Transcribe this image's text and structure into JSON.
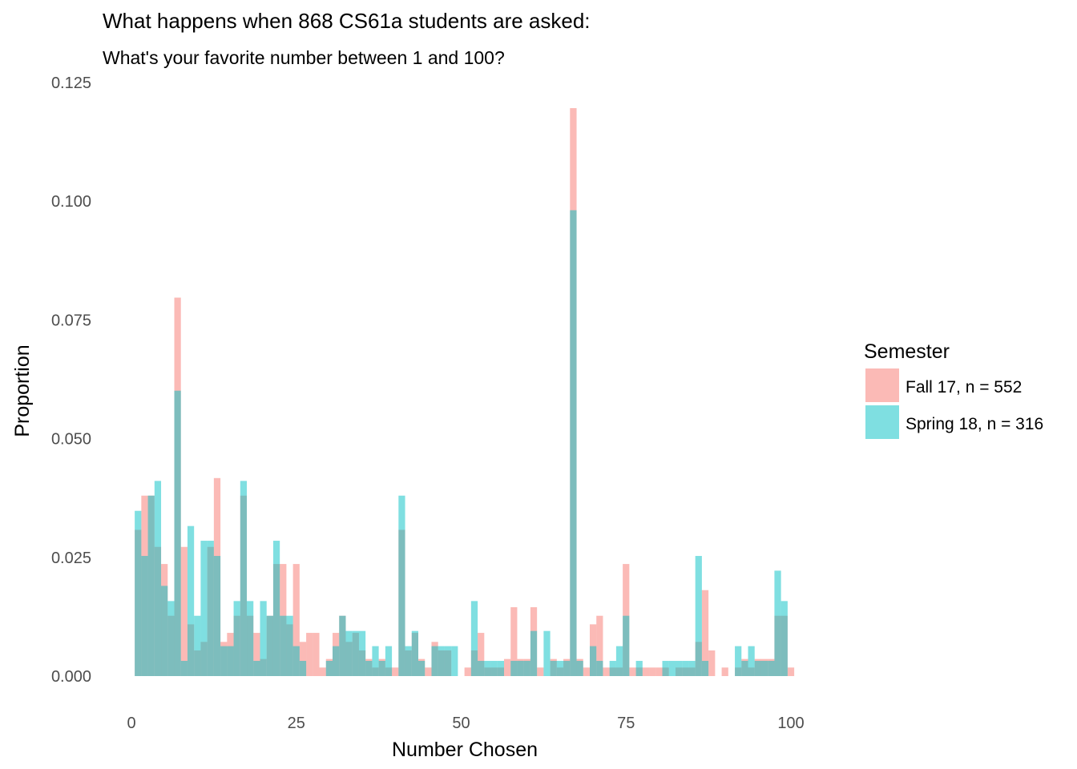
{
  "chart_data": {
    "type": "bar",
    "title": "What happens when 868 CS61a students are asked:",
    "subtitle": "What's your favorite number between 1 and 100?",
    "xlabel": "Number Chosen",
    "ylabel": "Proportion",
    "xlim": [
      0,
      100
    ],
    "ylim": [
      0,
      0.125
    ],
    "x_ticks": [
      "0",
      "25",
      "50",
      "75",
      "100"
    ],
    "x_tick_values": [
      0,
      25,
      50,
      75,
      100
    ],
    "y_ticks": [
      "0.000",
      "0.025",
      "0.050",
      "0.075",
      "0.100",
      "0.125"
    ],
    "y_tick_values": [
      0,
      0.025,
      0.05,
      0.075,
      0.1,
      0.125
    ],
    "grid": false,
    "legend": {
      "title": "Semester",
      "placement": "right"
    },
    "x": [
      1,
      2,
      3,
      4,
      5,
      6,
      7,
      8,
      9,
      10,
      11,
      12,
      13,
      14,
      15,
      16,
      17,
      18,
      19,
      20,
      21,
      22,
      23,
      24,
      25,
      26,
      27,
      28,
      29,
      30,
      31,
      32,
      33,
      34,
      35,
      36,
      37,
      38,
      39,
      40,
      41,
      42,
      43,
      44,
      45,
      46,
      47,
      48,
      49,
      50,
      51,
      52,
      53,
      54,
      55,
      56,
      57,
      58,
      59,
      60,
      61,
      62,
      63,
      64,
      65,
      66,
      67,
      68,
      69,
      70,
      71,
      72,
      73,
      74,
      75,
      76,
      77,
      78,
      79,
      80,
      81,
      82,
      83,
      84,
      85,
      86,
      87,
      88,
      89,
      90,
      91,
      92,
      93,
      94,
      95,
      96,
      97,
      98,
      99,
      100
    ],
    "series": [
      {
        "name": "Fall 17, n = 552",
        "color": "#F8766D",
        "values": [
          0.0308,
          0.038,
          0.038,
          0.0272,
          0.0236,
          0.0127,
          0.0797,
          0.0272,
          0.0109,
          0.0054,
          0.0072,
          0.0272,
          0.0417,
          0.0072,
          0.0091,
          0.0127,
          0.038,
          0.0127,
          0.0091,
          0.0036,
          0.0127,
          0.0236,
          0.0236,
          0.0109,
          0.0236,
          0.0072,
          0.0091,
          0.0091,
          0.0018,
          0.0036,
          0.0091,
          0.0127,
          0.0072,
          0.0091,
          0.0054,
          0.0036,
          0.0018,
          0.0036,
          0.0018,
          0.0018,
          0.0308,
          0.0054,
          0.0091,
          0.0036,
          0.0018,
          0.0072,
          0.0054,
          0.0054,
          0,
          0,
          0.0018,
          0.0054,
          0.0091,
          0.0018,
          0.0018,
          0.0018,
          0.0036,
          0.0145,
          0.0036,
          0.0036,
          0.0145,
          0.0018,
          0,
          0.0036,
          0.0018,
          0.0036,
          0.1196,
          0.0036,
          0.0018,
          0.0109,
          0.0127,
          0.0018,
          0.0018,
          0.0018,
          0.0236,
          0.0018,
          0.0018,
          0.0018,
          0.0018,
          0.0018,
          0.0018,
          0,
          0.0018,
          0.0018,
          0.0018,
          0.0072,
          0.0181,
          0.0054,
          0,
          0.0018,
          0,
          0.0018,
          0.0036,
          0.0018,
          0.0036,
          0.0036,
          0.0036,
          0.0127,
          0.0127,
          0.0018
        ]
      },
      {
        "name": "Spring 18, n = 316",
        "color": "#00BFC4",
        "values": [
          0.0348,
          0.0253,
          0.038,
          0.0411,
          0.019,
          0.0158,
          0.0601,
          0.0032,
          0.0316,
          0.0127,
          0.0285,
          0.0285,
          0.0253,
          0.0063,
          0.0063,
          0.0158,
          0.0411,
          0.0158,
          0.0032,
          0.0158,
          0.0127,
          0.0285,
          0.0127,
          0.0127,
          0.0063,
          0.0032,
          0,
          0,
          0,
          0.0032,
          0.0063,
          0.0127,
          0.0095,
          0.0095,
          0.0095,
          0.0032,
          0.0063,
          0.0032,
          0.0063,
          0,
          0.038,
          0.0063,
          0.0095,
          0.0032,
          0,
          0.0063,
          0.0063,
          0.0063,
          0.0063,
          0,
          0,
          0.0158,
          0.0032,
          0.0032,
          0.0032,
          0.0032,
          0,
          0.0032,
          0.0032,
          0.0032,
          0.0095,
          0,
          0.0095,
          0.0032,
          0.0032,
          0.0032,
          0.0981,
          0.0032,
          0,
          0.0063,
          0.0032,
          0,
          0.0032,
          0.0063,
          0.0127,
          0,
          0.0032,
          0,
          0,
          0,
          0.0032,
          0.0032,
          0.0032,
          0.0032,
          0.0032,
          0.0253,
          0.0032,
          0,
          0,
          0,
          0,
          0.0063,
          0.0032,
          0.0063,
          0.0032,
          0.0032,
          0.0032,
          0.0222,
          0.0158,
          0
        ]
      }
    ]
  }
}
